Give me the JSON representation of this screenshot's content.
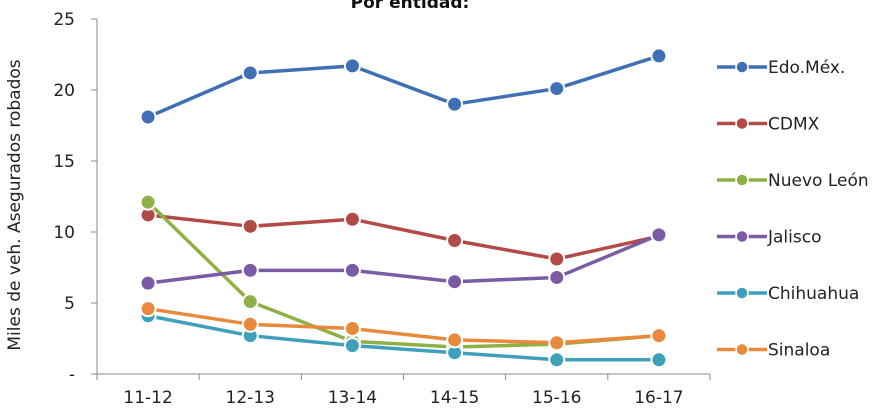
{
  "chart_data": {
    "type": "line",
    "title": "Por entidad:",
    "xlabel": "",
    "ylabel": "Miles de veh. Asegurados robados",
    "categories": [
      "11-12",
      "12-13",
      "13-14",
      "14-15",
      "15-16",
      "16-17"
    ],
    "ylim": [
      0,
      25
    ],
    "yticks": [
      {
        "value": 0,
        "label": "-"
      },
      {
        "value": 5,
        "label": "5"
      },
      {
        "value": 10,
        "label": "10"
      },
      {
        "value": 15,
        "label": "15"
      },
      {
        "value": 20,
        "label": "20"
      },
      {
        "value": 25,
        "label": "25"
      }
    ],
    "grid": false,
    "legend_position": "right",
    "series": [
      {
        "name": "Edo.Méx.",
        "color": "#3f6fb5",
        "values": [
          18.1,
          21.2,
          21.7,
          19.0,
          20.1,
          22.4
        ]
      },
      {
        "name": "CDMX",
        "color": "#b24a46",
        "values": [
          11.2,
          10.4,
          10.9,
          9.4,
          8.1,
          9.7
        ]
      },
      {
        "name": "Nuevo León",
        "color": "#8fb047",
        "values": [
          12.1,
          5.1,
          2.3,
          1.9,
          2.1,
          2.7
        ]
      },
      {
        "name": "Jalisco",
        "color": "#7b5aa6",
        "values": [
          6.4,
          7.3,
          7.3,
          6.5,
          6.8,
          9.8
        ]
      },
      {
        "name": "Chihuahua",
        "color": "#3ea0bb",
        "values": [
          4.1,
          2.7,
          2.0,
          1.5,
          1.0,
          1.0
        ]
      },
      {
        "name": "Sinaloa",
        "color": "#e8893b",
        "values": [
          4.6,
          3.5,
          3.2,
          2.4,
          2.2,
          2.7
        ]
      }
    ]
  }
}
